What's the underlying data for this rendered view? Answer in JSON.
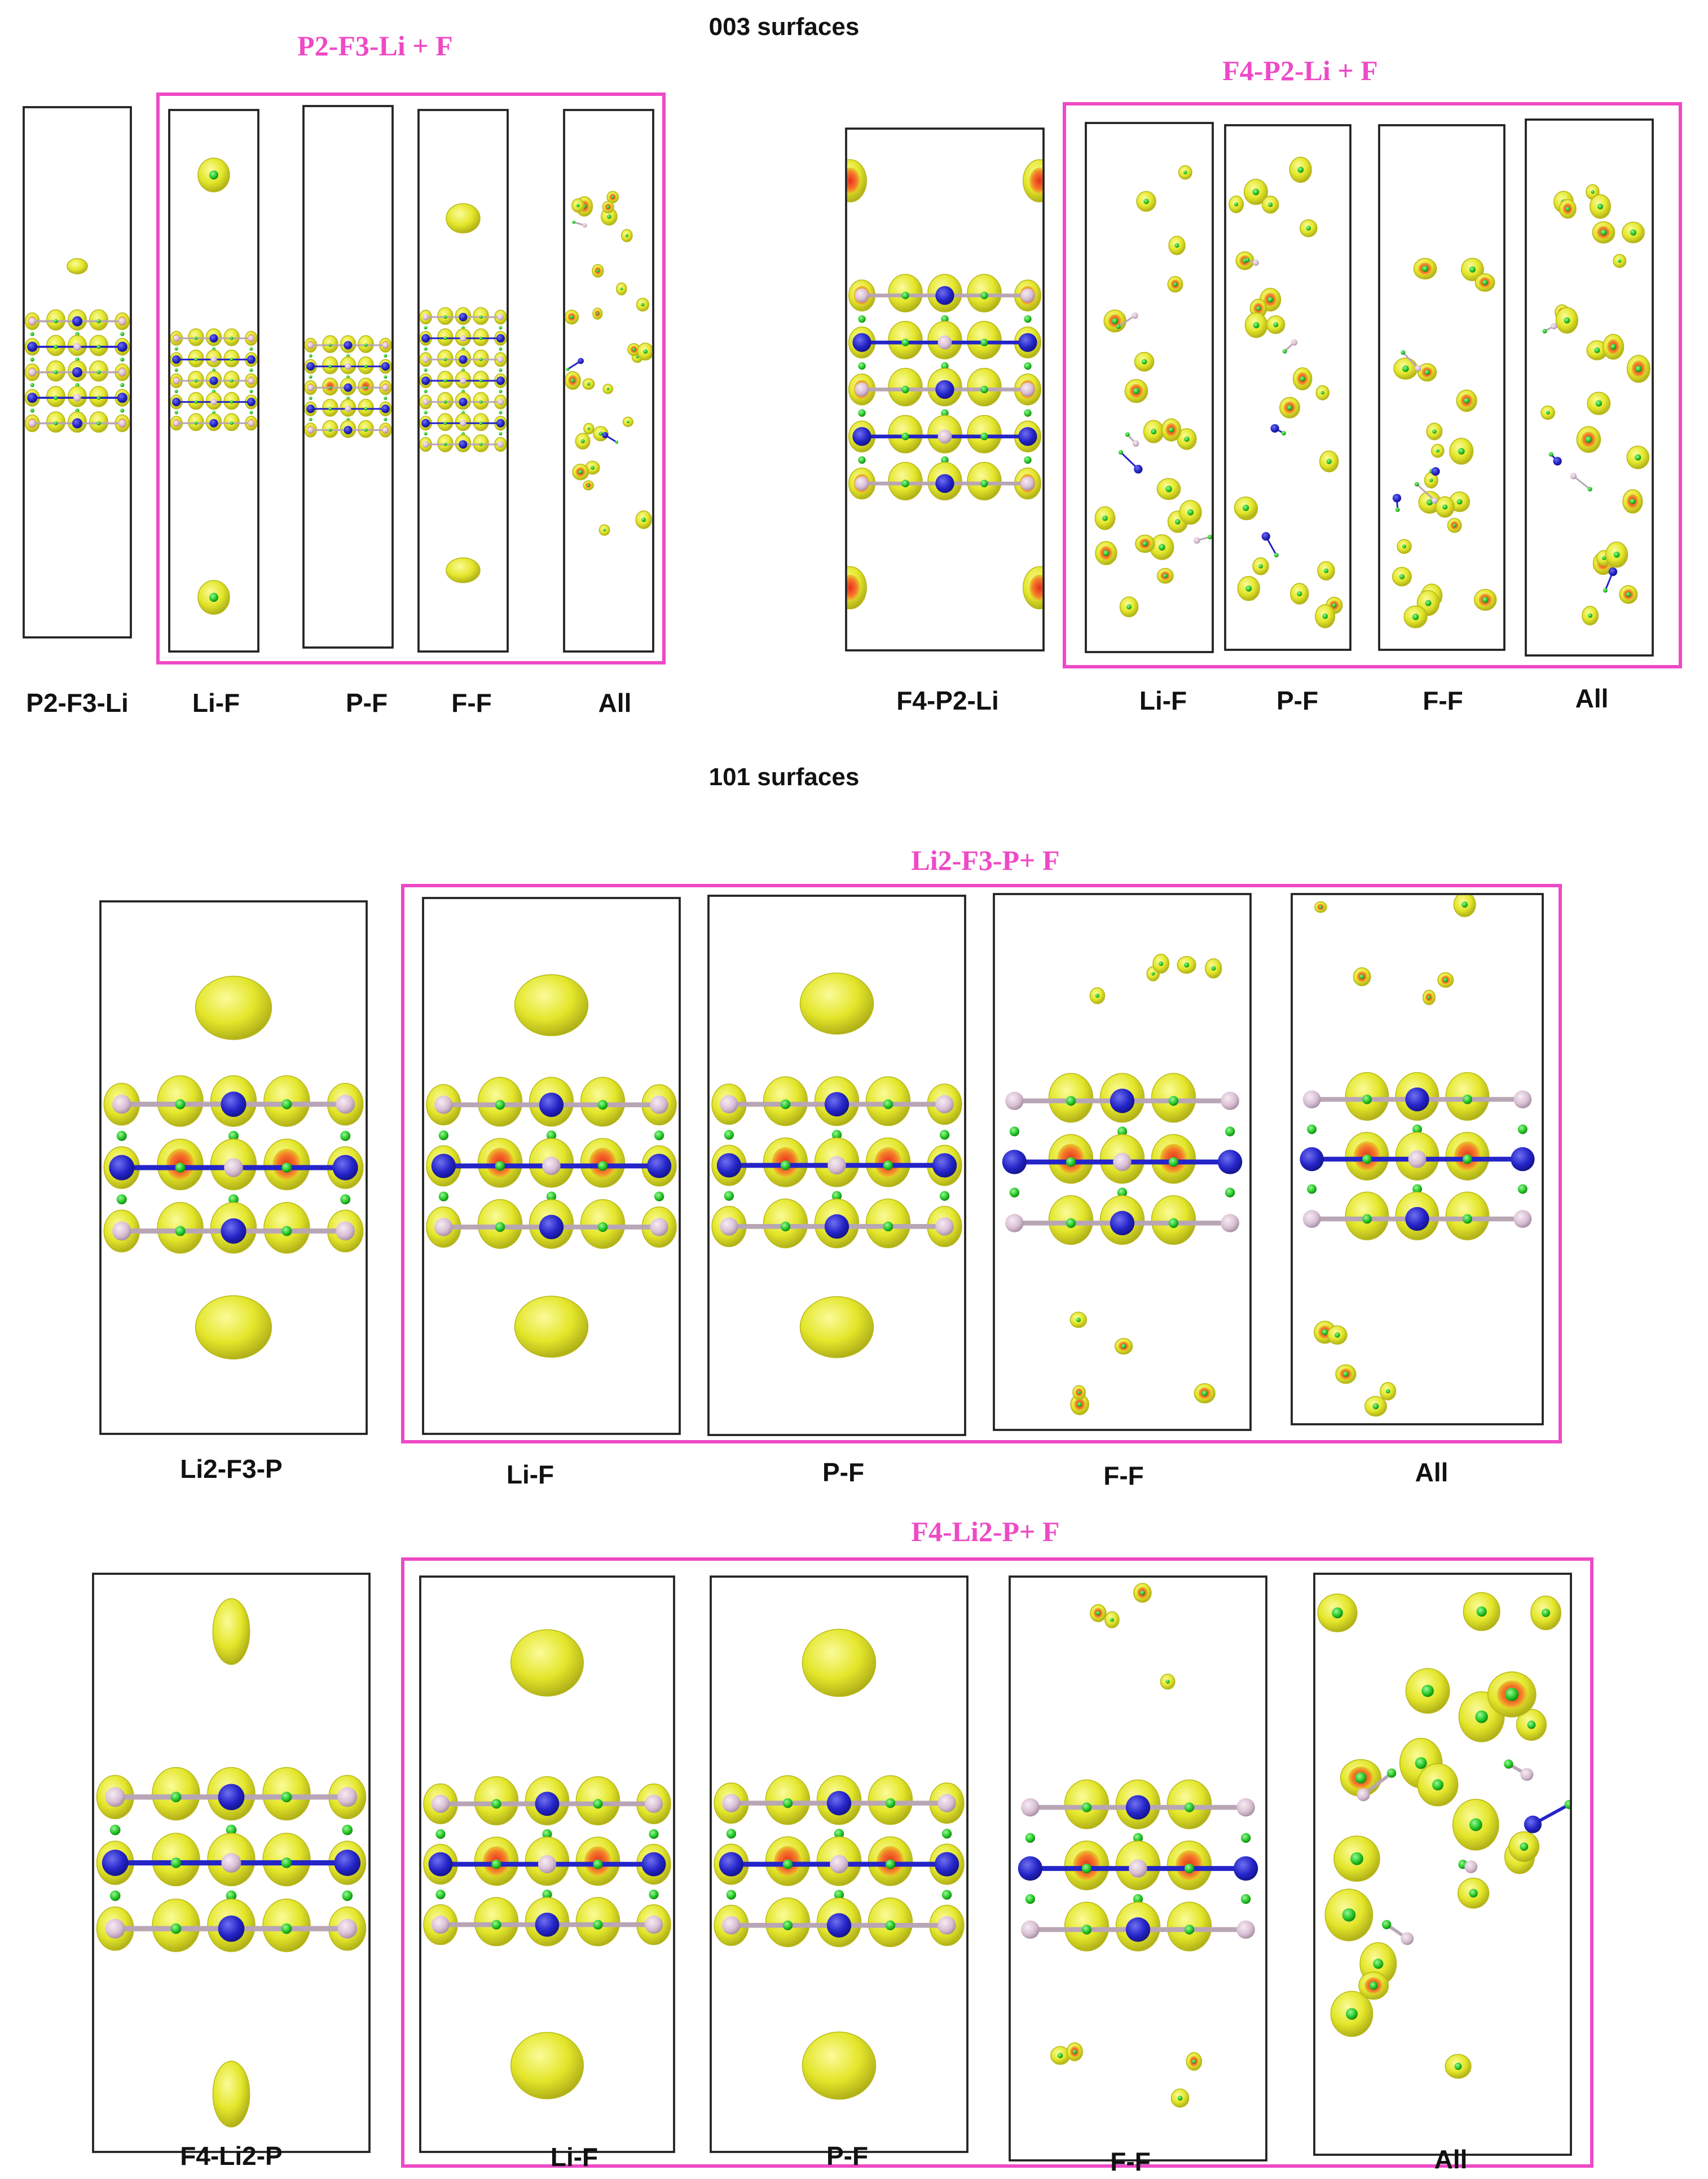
{
  "colors": {
    "lobe": "#e3e62a",
    "lobe_edge": "#b9b81a",
    "lobe_hot": "#f2552b",
    "li_atom": "#2424c8",
    "p_atom": "#d9bfd4",
    "f_atom": "#25c925",
    "group_border": "#ee49c6",
    "group_title": "#ee49c6"
  },
  "sections": [
    {
      "title": "003 surfaces",
      "groups": [
        {
          "reference": "P2-F3-Li",
          "title": "P2-F3-Li + F",
          "panels": [
            "Li-F",
            "P-F",
            "F-F",
            "All"
          ]
        },
        {
          "reference": "F4-P2-Li",
          "title": "F4-P2-Li + F",
          "panels": [
            "Li-F",
            "P-F",
            "F-F",
            "All"
          ]
        }
      ]
    },
    {
      "title": "101 surfaces",
      "groups": [
        {
          "reference": "Li2-F3-P",
          "title": "Li2-F3-P+ F",
          "panels": [
            "Li-F",
            "P-F",
            "F-F",
            "All"
          ]
        },
        {
          "reference": "F4-Li2-P",
          "title": "F4-Li2-P+ F",
          "panels": [
            "Li-F",
            "P-F",
            "F-F",
            "All"
          ]
        }
      ]
    }
  ]
}
